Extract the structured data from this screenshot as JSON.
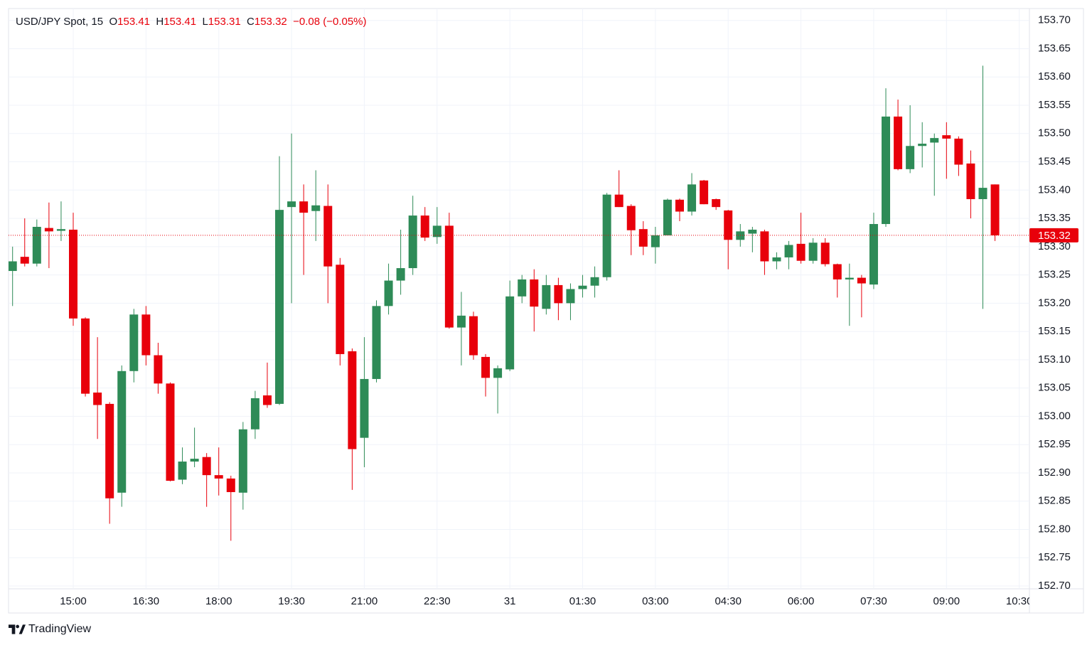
{
  "chart_data": {
    "type": "candlestick",
    "legend": {
      "symbol": "USD/JPY Spot, 15",
      "o_label": "O",
      "o": "153.41",
      "h_label": "H",
      "h": "153.41",
      "l_label": "L",
      "l": "153.31",
      "c_label": "C",
      "c": "153.32",
      "change": "−0.08 (−0.05%)"
    },
    "categories": [
      null,
      null,
      null,
      null,
      null,
      "15:00",
      null,
      null,
      null,
      null,
      null,
      "16:30",
      null,
      null,
      null,
      null,
      null,
      "18:00",
      null,
      null,
      null,
      null,
      null,
      "19:30",
      null,
      null,
      null,
      null,
      null,
      "21:00",
      null,
      null,
      null,
      null,
      null,
      "22:30",
      null,
      null,
      null,
      null,
      null,
      "31",
      null,
      null,
      null,
      null,
      null,
      "01:30",
      null,
      null,
      null,
      null,
      null,
      "03:00",
      null,
      null,
      null,
      null,
      null,
      "04:30",
      null,
      null,
      null,
      null,
      null,
      "06:00",
      null,
      null,
      null,
      null,
      null,
      "07:30",
      null,
      null,
      null,
      null,
      null,
      "09:00",
      null,
      null,
      null,
      null,
      null,
      "10:30"
    ],
    "open": [
      153.257,
      153.282,
      153.27,
      153.333,
      153.328,
      153.33,
      153.173,
      153.042,
      153.022,
      152.865,
      153.08,
      153.18,
      153.108,
      153.058,
      152.888,
      152.92,
      152.928,
      152.896,
      152.89,
      152.865,
      152.977,
      153.037,
      153.022,
      153.37,
      153.38,
      153.363,
      153.372,
      153.268,
      153.115,
      152.962,
      153.066,
      153.195,
      153.24,
      153.262,
      153.355,
      153.317,
      153.337,
      153.157,
      153.177,
      153.105,
      153.068,
      153.083,
      153.212,
      153.242,
      153.19,
      153.232,
      153.2,
      153.225,
      153.231,
      153.246,
      153.392,
      153.372,
      153.331,
      153.299,
      153.32,
      153.383,
      153.362,
      153.417,
      153.384,
      153.364,
      153.312,
      153.323,
      153.327,
      153.274,
      153.281,
      153.305,
      153.275,
      153.307,
      153.269,
      153.242,
      153.245,
      153.233,
      153.34,
      153.53,
      153.437,
      153.478,
      153.484,
      153.497,
      153.491,
      153.447,
      153.384,
      153.41,
      null,
      null
    ],
    "high": [
      153.3,
      153.35,
      153.348,
      153.378,
      153.38,
      153.36,
      153.175,
      153.14,
      153.025,
      153.09,
      153.19,
      153.195,
      153.13,
      153.06,
      152.945,
      152.98,
      152.935,
      152.945,
      152.895,
      152.99,
      153.045,
      153.095,
      153.46,
      153.5,
      153.41,
      153.435,
      153.41,
      153.28,
      153.12,
      153.14,
      153.205,
      153.27,
      153.33,
      153.39,
      153.37,
      153.37,
      153.36,
      153.22,
      153.185,
      153.11,
      153.09,
      153.24,
      153.25,
      153.26,
      153.25,
      153.245,
      153.235,
      153.25,
      153.265,
      153.395,
      153.435,
      153.375,
      153.345,
      153.335,
      153.385,
      153.385,
      153.43,
      153.418,
      153.385,
      153.365,
      153.34,
      153.335,
      153.33,
      153.29,
      153.31,
      153.36,
      153.315,
      153.315,
      153.27,
      153.27,
      153.25,
      153.36,
      153.58,
      153.56,
      153.55,
      153.52,
      153.5,
      153.52,
      153.495,
      153.47,
      153.62,
      153.41,
      null,
      null
    ],
    "low": [
      153.195,
      153.265,
      153.265,
      153.262,
      153.31,
      153.16,
      153.035,
      152.96,
      152.81,
      152.84,
      153.06,
      153.09,
      153.04,
      152.885,
      152.88,
      152.91,
      152.84,
      152.86,
      152.78,
      152.835,
      152.96,
      153.015,
      153.02,
      153.2,
      153.25,
      153.31,
      153.2,
      153.09,
      152.87,
      152.91,
      153.06,
      153.18,
      153.215,
      153.25,
      153.31,
      153.305,
      153.155,
      153.09,
      153.1,
      153.035,
      153.005,
      153.08,
      153.2,
      153.15,
      153.18,
      153.17,
      153.17,
      153.21,
      153.21,
      153.24,
      153.37,
      153.285,
      153.285,
      153.27,
      153.32,
      153.345,
      153.355,
      153.375,
      153.365,
      153.26,
      153.3,
      153.29,
      153.25,
      153.26,
      153.26,
      153.27,
      153.27,
      153.265,
      153.21,
      153.16,
      153.175,
      153.225,
      153.335,
      153.435,
      153.43,
      153.44,
      153.39,
      153.42,
      153.425,
      153.35,
      153.19,
      153.31,
      null,
      null
    ],
    "close": [
      153.274,
      153.27,
      153.335,
      153.327,
      153.331,
      153.173,
      153.04,
      153.02,
      152.855,
      153.08,
      153.18,
      153.108,
      153.058,
      152.886,
      152.92,
      152.925,
      152.896,
      152.89,
      152.866,
      152.977,
      153.032,
      153.02,
      153.365,
      153.38,
      153.36,
      153.373,
      153.265,
      153.11,
      152.942,
      153.066,
      153.195,
      153.24,
      153.262,
      153.355,
      153.316,
      153.337,
      153.157,
      153.178,
      153.108,
      153.068,
      153.085,
      153.212,
      153.242,
      153.194,
      153.232,
      153.2,
      153.225,
      153.231,
      153.246,
      153.392,
      153.37,
      153.329,
      153.3,
      153.32,
      153.383,
      153.362,
      153.41,
      153.375,
      153.37,
      153.312,
      153.327,
      153.33,
      153.274,
      153.281,
      153.303,
      153.275,
      153.307,
      153.269,
      153.242,
      153.245,
      153.235,
      153.34,
      153.53,
      153.437,
      153.478,
      153.482,
      153.492,
      153.491,
      153.445,
      153.384,
      153.404,
      153.32,
      null,
      null
    ],
    "up_color": "#2e8b57",
    "down_color": "#e8000b",
    "ylim": [
      152.695,
      153.721
    ],
    "yticks": [
      {
        "value": 152.7,
        "label": "152.70"
      },
      152.75,
      {
        "value": 152.8,
        "label": "152.80"
      },
      152.85,
      {
        "value": 152.9,
        "label": "152.90"
      },
      152.95,
      {
        "value": 153.0,
        "label": "153.00"
      },
      153.05,
      {
        "value": 153.1,
        "label": "153.10"
      },
      153.15,
      {
        "value": 153.2,
        "label": "153.20"
      },
      153.25,
      {
        "value": 153.3,
        "label": "153.30"
      },
      153.35,
      {
        "value": 153.4,
        "label": "153.40"
      },
      153.45,
      {
        "value": 153.5,
        "label": "153.50"
      },
      153.55,
      {
        "value": 153.6,
        "label": "153.60"
      },
      153.65,
      {
        "value": 153.7,
        "label": "153.70"
      }
    ],
    "last_price": 153.32,
    "grid": true
  },
  "brand": "TradingView"
}
